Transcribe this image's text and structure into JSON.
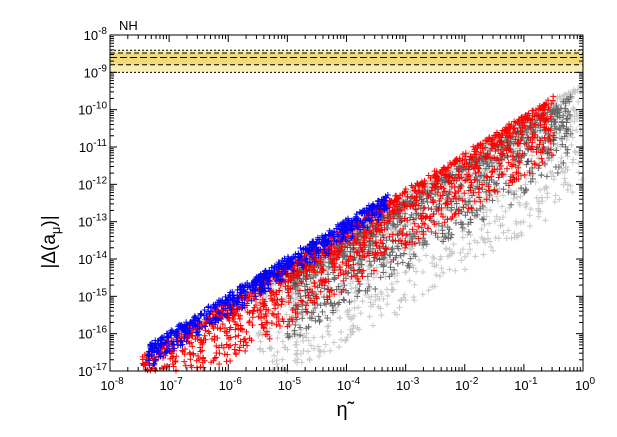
{
  "chart_data": {
    "type": "scatter",
    "title": "NH",
    "xlabel": "η̃",
    "ylabel": "|Δ(a",
    "ylabel_sub": "μ",
    "ylabel_close": ")|",
    "x_scale": "log",
    "y_scale": "log",
    "xlim": [
      1e-08,
      1
    ],
    "ylim": [
      1e-17,
      1e-08
    ],
    "grid": false,
    "x_ticks": [
      {
        "base": "10",
        "exp": "-8"
      },
      {
        "base": "10",
        "exp": "-7"
      },
      {
        "base": "10",
        "exp": "-6"
      },
      {
        "base": "10",
        "exp": "-5"
      },
      {
        "base": "10",
        "exp": "-4"
      },
      {
        "base": "10",
        "exp": "-3"
      },
      {
        "base": "10",
        "exp": "-2"
      },
      {
        "base": "10",
        "exp": "-1"
      },
      {
        "base": "10",
        "exp": "0"
      }
    ],
    "y_ticks": [
      {
        "base": "10",
        "exp": "-17"
      },
      {
        "base": "10",
        "exp": "-16"
      },
      {
        "base": "10",
        "exp": "-15"
      },
      {
        "base": "10",
        "exp": "-14"
      },
      {
        "base": "10",
        "exp": "-13"
      },
      {
        "base": "10",
        "exp": "-12"
      },
      {
        "base": "10",
        "exp": "-11"
      },
      {
        "base": "10",
        "exp": "-10"
      },
      {
        "base": "10",
        "exp": "-9"
      },
      {
        "base": "10",
        "exp": "-8"
      }
    ],
    "band": {
      "outer": [
        1e-09,
        3.9e-09
      ],
      "inner": [
        1.6e-09,
        3.3e-09
      ],
      "central": 2.5e-09,
      "color": "#f7e9a0",
      "inner_color": "#f0d36a"
    },
    "series": [
      {
        "color": "#c8c8c8",
        "marker": "plus",
        "trend": {
          "slope": 1.0,
          "log_intercept_top": -9.3,
          "log_scatter_down": 3.0,
          "log_x_range": [
            -5.5,
            -0.02
          ]
        }
      },
      {
        "color": "#686868",
        "marker": "plus",
        "trend": {
          "slope": 1.0,
          "log_intercept_top": -9.5,
          "log_scatter_down": 1.8,
          "log_x_range": [
            -5.0,
            -0.2
          ]
        }
      },
      {
        "color": "#ff0000",
        "marker": "plus",
        "trend": {
          "slope": 1.0,
          "log_intercept_top": -9.2,
          "log_scatter_down": 1.6,
          "log_x_range": [
            -7.45,
            -0.5
          ]
        }
      },
      {
        "color": "#0000ff",
        "marker": "plus",
        "trend": {
          "slope": 1.0,
          "log_intercept_top": -9.0,
          "log_scatter_down": 0.5,
          "log_x_range": [
            -7.35,
            -3.3
          ]
        }
      }
    ]
  }
}
